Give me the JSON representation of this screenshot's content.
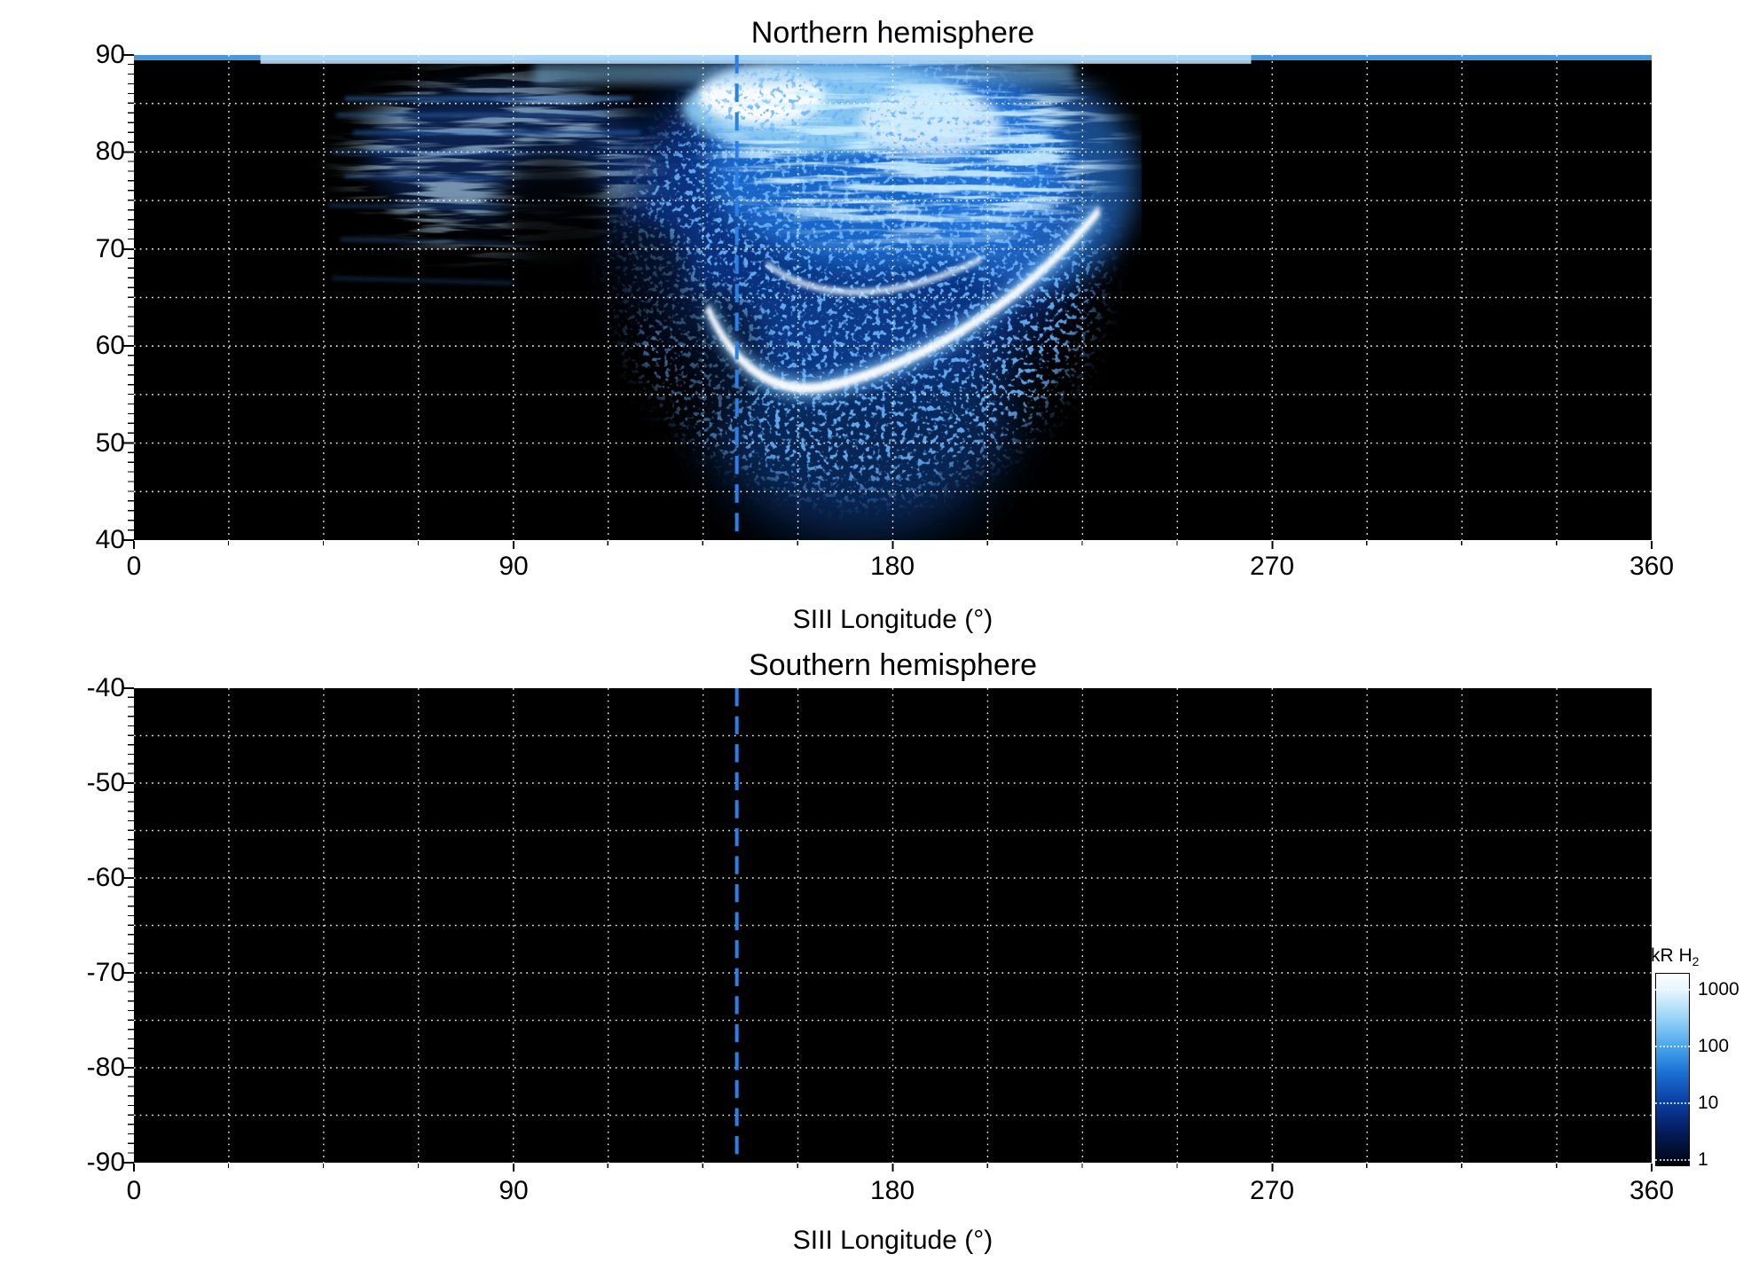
{
  "figure": {
    "north": {
      "title": "Northern hemisphere",
      "xlabel": "SIII Longitude (°)",
      "ylabel": "Latitude (°)",
      "xticks": [
        "0",
        "90",
        "180",
        "270",
        "360"
      ],
      "yticks": [
        "90",
        "80",
        "70",
        "60",
        "50",
        "40"
      ]
    },
    "south": {
      "title": "Southern hemisphere",
      "xlabel": "SIII Longitude (°)",
      "ylabel": "Latitude (°)",
      "xticks": [
        "0",
        "90",
        "180",
        "270",
        "360"
      ],
      "yticks": [
        "-40",
        "-50",
        "-60",
        "-70",
        "-80",
        "-90"
      ]
    },
    "colorbar": {
      "label_main": "kR H",
      "label_sub": "2",
      "ticks": [
        "1000",
        "100",
        "10",
        "1"
      ]
    }
  },
  "chart_data": [
    {
      "type": "heatmap",
      "title": "Northern hemisphere",
      "xlabel": "SIII Longitude (°)",
      "ylabel": "Latitude (°)",
      "xlim": [
        0,
        360
      ],
      "ylim": [
        40,
        90
      ],
      "x_ticks": [
        0,
        90,
        180,
        270,
        360
      ],
      "y_ticks": [
        90,
        80,
        70,
        60,
        50,
        40
      ],
      "grid": {
        "lon_step": 22.5,
        "lat_step": 5,
        "style": "white dotted"
      },
      "colorbar": {
        "label": "kR H2",
        "scale": "log",
        "tick_values": [
          1000,
          100,
          10,
          1
        ],
        "colormap": "black → dark blue → blue → light blue → white"
      },
      "annotations": [
        {
          "type": "vertical-dashed-line",
          "x": 143,
          "color": "#2b80e6"
        }
      ],
      "features": [
        {
          "name": "main auroral emission",
          "lon_range": [
            95,
            237
          ],
          "lat_range": [
            40,
            90
          ],
          "peak_kR": 1000,
          "description": "bright white/light-blue emission core near 135–200° longitude above 75° latitude, diffuse blue speckled emission down to 40° latitude"
        },
        {
          "name": "bright narrow arc",
          "peak_kR": 1000,
          "description": "thin white arc sweeping from ~(136°, 64°) down through ~(166°, 56°) and back up to ~(229°, 74°)"
        },
        {
          "name": "faint striations",
          "lon_range": [
            45,
            120
          ],
          "lat_range": [
            63,
            88
          ],
          "kR": "1–30",
          "description": "horizontal streaky filaments of weak emission"
        },
        {
          "name": "polar-edge strip",
          "lat": 90,
          "lon_range": [
            0,
            360
          ],
          "kR": "~100–1000",
          "description": "thin bright light-blue strip along the top (90°) edge spanning all longitudes"
        },
        {
          "name": "dark void",
          "lon_range": [
            85,
            115
          ],
          "lat_range": [
            62,
            75
          ],
          "kR": "<1",
          "description": "black gap embedded in the faint emission"
        },
        {
          "name": "background",
          "kR": "<1",
          "description": "black (no emission / no coverage) outside ~95–237° longitude"
        }
      ]
    },
    {
      "type": "heatmap",
      "title": "Southern hemisphere",
      "xlabel": "SIII Longitude (°)",
      "ylabel": "Latitude (°)",
      "xlim": [
        0,
        360
      ],
      "ylim": [
        -90,
        -40
      ],
      "x_ticks": [
        0,
        90,
        180,
        270,
        360
      ],
      "y_ticks": [
        -40,
        -50,
        -60,
        -70,
        -80,
        -90
      ],
      "grid": {
        "lon_step": 22.5,
        "lat_step": 5,
        "style": "white dotted"
      },
      "annotations": [
        {
          "type": "vertical-dashed-line",
          "x": 143,
          "color": "#2b80e6"
        }
      ],
      "features": [
        {
          "name": "no data",
          "kR": "<1",
          "description": "entire panel black — no emission observed/mapped"
        }
      ]
    }
  ]
}
